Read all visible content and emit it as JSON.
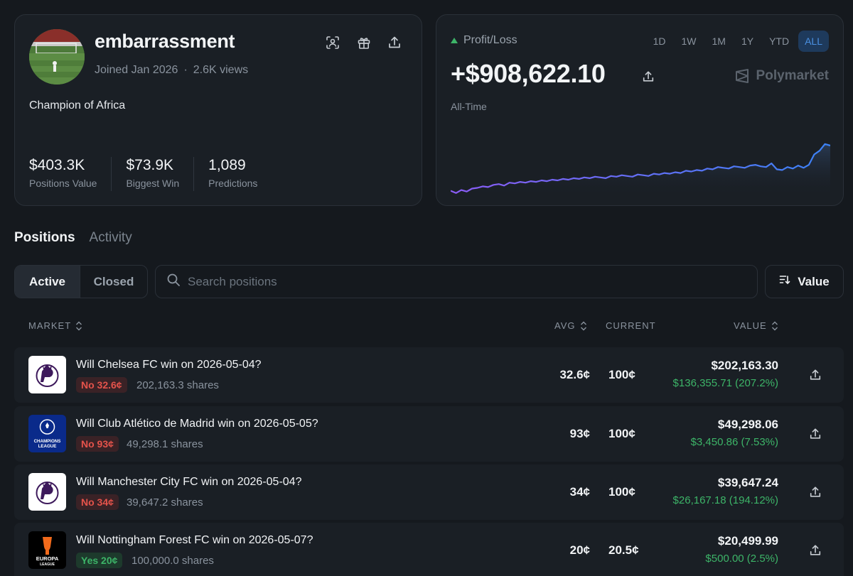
{
  "profile": {
    "username": "embarrassment",
    "joined": "Joined Jan 2026",
    "views": "2.6K views",
    "bio": "Champion of Africa",
    "stats": [
      {
        "value": "$403.3K",
        "label": "Positions Value"
      },
      {
        "value": "$73.9K",
        "label": "Biggest Win"
      },
      {
        "value": "1,089",
        "label": "Predictions"
      }
    ],
    "icons": [
      "scan-icon",
      "gift-icon",
      "share-icon"
    ]
  },
  "pnl": {
    "title": "Profit/Loss",
    "ranges": [
      "1D",
      "1W",
      "1M",
      "1Y",
      "YTD",
      "ALL"
    ],
    "active_range": "ALL",
    "value": "+$908,622.10",
    "brand": "Polymarket",
    "period": "All-Time",
    "colors": {
      "line_start": "#8b5cf6",
      "line_end": "#3b82f6",
      "up": "#3db468"
    }
  },
  "chart_data": {
    "type": "area",
    "title": "",
    "xlabel": "",
    "ylabel": "",
    "grid": false,
    "ylim": [
      -5,
      85
    ],
    "x": [
      0,
      1,
      2,
      3,
      4,
      5,
      6,
      7,
      8,
      9,
      10,
      11,
      12,
      13,
      14,
      15,
      16,
      17,
      18,
      19,
      20,
      21,
      22,
      23,
      24,
      25,
      26,
      27,
      28,
      29,
      30,
      31,
      32,
      33,
      34,
      35,
      36,
      37,
      38,
      39,
      40,
      41,
      42,
      43,
      44,
      45,
      46,
      47,
      48,
      49,
      50,
      51,
      52,
      53,
      54,
      55,
      56,
      57,
      58,
      59,
      60,
      61,
      62,
      63,
      64,
      65,
      66,
      67,
      68,
      69,
      70,
      71
    ],
    "values": [
      3,
      0,
      4,
      2,
      6,
      7,
      9,
      8,
      11,
      12,
      10,
      14,
      13,
      15,
      14,
      16,
      15,
      17,
      16,
      18,
      17,
      19,
      18,
      20,
      19,
      21,
      20,
      22,
      21,
      20,
      23,
      22,
      24,
      23,
      22,
      25,
      24,
      23,
      26,
      25,
      27,
      26,
      28,
      27,
      30,
      29,
      31,
      30,
      33,
      32,
      35,
      34,
      33,
      36,
      35,
      34,
      37,
      38,
      36,
      35,
      40,
      32,
      31,
      35,
      33,
      37,
      34,
      38,
      52,
      57,
      66,
      64
    ]
  },
  "tabs": {
    "positions": "Positions",
    "activity": "Activity"
  },
  "filters": {
    "active": "Active",
    "closed": "Closed",
    "search_placeholder": "Search positions",
    "sort_label": "Value"
  },
  "table": {
    "headers": {
      "market": "MARKET",
      "avg": "AVG",
      "current": "CURRENT",
      "value": "VALUE"
    },
    "rows": [
      {
        "question": "Will Chelsea FC win on 2026-05-04?",
        "outcome": "No 32.6¢",
        "outcome_type": "no",
        "shares": "202,163.3 shares",
        "avg": "32.6¢",
        "current": "100¢",
        "value": "$202,163.30",
        "gain": "$136,355.71 (207.2%)",
        "logo": "premier-league-logo"
      },
      {
        "question": "Will Club Atlético de Madrid win on 2026-05-05?",
        "outcome": "No 93¢",
        "outcome_type": "no",
        "shares": "49,298.1 shares",
        "avg": "93¢",
        "current": "100¢",
        "value": "$49,298.06",
        "gain": "$3,450.86 (7.53%)",
        "logo": "champions-league-logo",
        "logo_text": [
          "CHAMPIONS",
          "LEAGUE"
        ]
      },
      {
        "question": "Will Manchester City FC win on 2026-05-04?",
        "outcome": "No 34¢",
        "outcome_type": "no",
        "shares": "39,647.2 shares",
        "avg": "34¢",
        "current": "100¢",
        "value": "$39,647.24",
        "gain": "$26,167.18 (194.12%)",
        "logo": "premier-league-logo"
      },
      {
        "question": "Will Nottingham Forest FC win on 2026-05-07?",
        "outcome": "Yes 20¢",
        "outcome_type": "yes",
        "shares": "100,000.0 shares",
        "avg": "20¢",
        "current": "20.5¢",
        "value": "$20,499.99",
        "gain": "$500.00 (2.5%)",
        "logo": "europa-league-logo",
        "logo_text": [
          "EUROPA",
          "LEAGUE"
        ]
      }
    ]
  }
}
